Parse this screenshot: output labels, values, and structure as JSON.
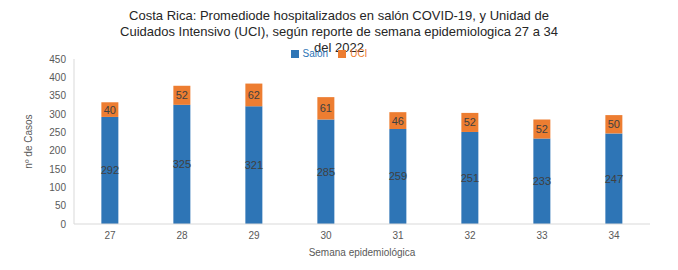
{
  "chart_data": {
    "type": "bar",
    "title": "Costa Rica: Promediode hospitalizados en salón COVID-19, y Unidad de Cuidados Intensivo (UCI), según reporte de semana epidemiologica 27 a 34 del 2022",
    "x_label": "Semana  epidemiológica",
    "y_label": "nº de Casos",
    "categories": [
      "27",
      "28",
      "29",
      "30",
      "31",
      "32",
      "33",
      "34"
    ],
    "series": [
      {
        "name": "Salón",
        "color": "#2E75B6",
        "values": [
          292,
          325,
          321,
          285,
          259,
          251,
          233,
          247
        ]
      },
      {
        "name": "UCI",
        "color": "#ED7D31",
        "values": [
          40,
          52,
          62,
          61,
          46,
          52,
          52,
          50
        ]
      }
    ],
    "ylim": [
      0,
      450
    ],
    "yticks": [
      0,
      50,
      100,
      150,
      200,
      250,
      300,
      350,
      400,
      450
    ],
    "stacked": true,
    "data_labels": true,
    "legend": "top",
    "grid": false
  }
}
